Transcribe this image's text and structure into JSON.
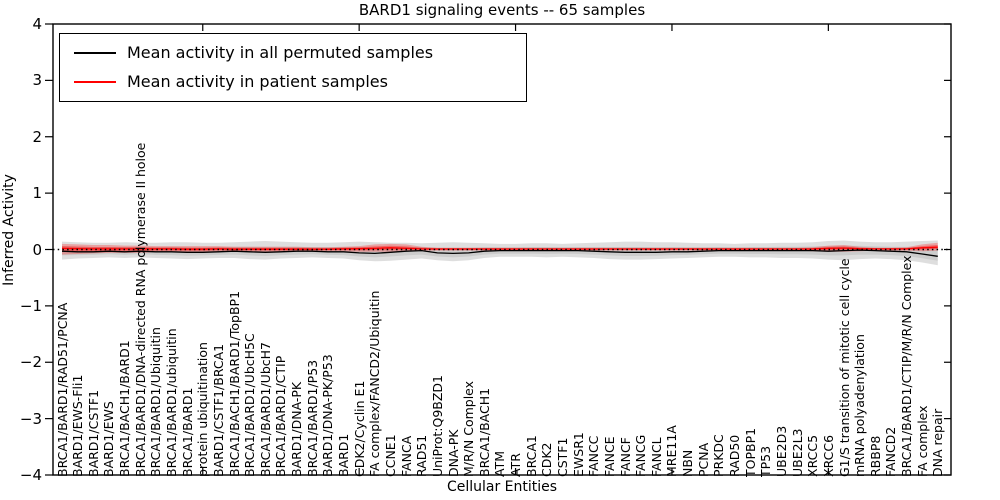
{
  "chart_data": {
    "type": "line",
    "title": "BARD1 signaling events -- 65 samples",
    "xlabel": "Cellular Entities",
    "ylabel": "Inferred Activity",
    "ylim": [
      -4,
      4
    ],
    "grid": false,
    "legend_position": "upper left",
    "baseline": 0,
    "colors": {
      "permuted": "#000000",
      "patient": "#ff0000",
      "axis": "#000000"
    },
    "yticks": [
      {
        "label": "4",
        "value": 4
      },
      {
        "label": "3",
        "value": 3
      },
      {
        "label": "2",
        "value": 2
      },
      {
        "label": "1",
        "value": 1
      },
      {
        "label": "0",
        "value": 0
      },
      {
        "label": "−1",
        "value": -1
      },
      {
        "label": "−2",
        "value": -2
      },
      {
        "label": "−3",
        "value": -3
      },
      {
        "label": "−4",
        "value": -4
      }
    ],
    "x_major_tick_indices": [
      9,
      19,
      29,
      39,
      49
    ],
    "categories": [
      "BRCA1/BARD1/RAD51/PCNA",
      "BARD1/EWS-Fli1",
      "BARD1/CSTF1",
      "BARD1/EWS",
      "BRCA1/BACH1/BARD1",
      "BRCA1/BARD1/DNA-directed RNA polymerase II holoe",
      "BRCA1/BARD1/Ubiquitin",
      "BRCA1/BARD1/ubiquitin",
      "BRCA1/BARD1",
      "protein ubiquitination",
      "BARD1/CSTF1/BRCA1",
      "BRCA1/BACH1/BARD1/TopBP1",
      "BRCA1/BARD1/UbcH5C",
      "BRCA1/BARD1/UbcH7",
      "BRCA1/BARD1/CTIP",
      "BARD1/DNA-PK",
      "BRCA1/BARD1/P53",
      "BARD1/DNA-PK/P53",
      "BARD1",
      "CDK2/Cyclin E1",
      "FA complex/FANCD2/Ubiquitin",
      "CCNE1",
      "FANCA",
      "RAD51",
      "UniProt:Q9BZD1",
      "DNA-PK",
      "M/R/N Complex",
      "BRCA1/BACH1",
      "ATM",
      "ATR",
      "BRCA1",
      "CDK2",
      "CSTF1",
      "EWSR1",
      "FANCC",
      "FANCE",
      "FANCF",
      "FANCG",
      "FANCL",
      "MRE11A",
      "NBN",
      "PCNA",
      "PRKDC",
      "RAD50",
      "TOPBP1",
      "TP53",
      "UBE2D3",
      "UBE2L3",
      "XRCC5",
      "XRCC6",
      "G1/S transition of mitotic cell cycle",
      "mRNA polyadenylation",
      "RBBP8",
      "FANCD2",
      "BRCA1/BARD1/CTIP/M/R/N Complex",
      "FA complex",
      "DNA repair"
    ],
    "series": [
      {
        "name": "Mean activity in all permuted samples",
        "color": "#000000",
        "band_opacity": 0.13,
        "inner_band_opacity": 0.08,
        "values": [
          -0.03,
          -0.04,
          -0.04,
          -0.03,
          -0.04,
          -0.03,
          -0.04,
          -0.04,
          -0.05,
          -0.05,
          -0.04,
          -0.03,
          -0.04,
          -0.05,
          -0.04,
          -0.03,
          -0.03,
          -0.04,
          -0.04,
          -0.06,
          -0.07,
          -0.05,
          -0.03,
          -0.02,
          -0.06,
          -0.07,
          -0.06,
          -0.03,
          -0.02,
          -0.02,
          -0.02,
          -0.02,
          -0.02,
          -0.02,
          -0.03,
          -0.04,
          -0.05,
          -0.05,
          -0.05,
          -0.04,
          -0.04,
          -0.03,
          -0.02,
          -0.02,
          -0.02,
          -0.02,
          -0.02,
          -0.02,
          -0.02,
          -0.03,
          -0.02,
          -0.01,
          -0.02,
          -0.03,
          -0.04,
          -0.08,
          -0.12
        ],
        "upper": [
          0.14,
          0.13,
          0.12,
          0.12,
          0.13,
          0.12,
          0.12,
          0.13,
          0.13,
          0.12,
          0.12,
          0.13,
          0.14,
          0.15,
          0.14,
          0.13,
          0.12,
          0.12,
          0.13,
          0.14,
          0.13,
          0.12,
          0.12,
          0.11,
          0.12,
          0.13,
          0.12,
          0.11,
          0.1,
          0.1,
          0.11,
          0.11,
          0.1,
          0.11,
          0.12,
          0.13,
          0.14,
          0.14,
          0.13,
          0.13,
          0.12,
          0.11,
          0.11,
          0.1,
          0.11,
          0.11,
          0.12,
          0.12,
          0.13,
          0.15,
          0.16,
          0.14,
          0.13,
          0.13,
          0.14,
          0.15,
          0.16
        ],
        "lower": [
          -0.18,
          -0.16,
          -0.15,
          -0.14,
          -0.15,
          -0.14,
          -0.15,
          -0.16,
          -0.17,
          -0.16,
          -0.15,
          -0.15,
          -0.17,
          -0.18,
          -0.16,
          -0.15,
          -0.14,
          -0.15,
          -0.16,
          -0.19,
          -0.21,
          -0.2,
          -0.18,
          -0.16,
          -0.19,
          -0.21,
          -0.19,
          -0.15,
          -0.13,
          -0.13,
          -0.13,
          -0.14,
          -0.13,
          -0.14,
          -0.15,
          -0.17,
          -0.18,
          -0.18,
          -0.17,
          -0.16,
          -0.15,
          -0.14,
          -0.13,
          -0.13,
          -0.14,
          -0.14,
          -0.15,
          -0.15,
          -0.16,
          -0.18,
          -0.19,
          -0.17,
          -0.16,
          -0.17,
          -0.19,
          -0.23,
          -0.28
        ]
      },
      {
        "name": "Mean activity in patient samples",
        "color": "#ff0000",
        "band_opacity": 0.27,
        "inner_band_opacity": 0.38,
        "values": [
          0.02,
          0.015,
          0.01,
          0.01,
          0.01,
          0.01,
          0.01,
          0.01,
          0.005,
          0.005,
          0.01,
          0.005,
          0.005,
          0.005,
          0.005,
          0.005,
          0.005,
          0.005,
          0.01,
          0.015,
          0.02,
          0.03,
          0.02,
          0.01,
          0.008,
          0.008,
          0.008,
          0.008,
          0.008,
          0.008,
          0.008,
          0.008,
          0.008,
          0.008,
          0.008,
          0.008,
          0.008,
          0.008,
          0.008,
          0.008,
          0.008,
          0.008,
          0.008,
          0.008,
          0.008,
          0.008,
          0.008,
          0.008,
          0.01,
          0.02,
          0.025,
          0.015,
          0.01,
          0.01,
          0.01,
          0.03,
          0.04
        ],
        "upper": [
          0.1,
          0.09,
          0.08,
          0.08,
          0.07,
          0.07,
          0.06,
          0.06,
          0.06,
          0.06,
          0.06,
          0.05,
          0.05,
          0.05,
          0.05,
          0.05,
          0.04,
          0.04,
          0.05,
          0.06,
          0.09,
          0.1,
          0.09,
          0.05,
          0.03,
          0.03,
          0.03,
          0.03,
          0.03,
          0.03,
          0.03,
          0.03,
          0.03,
          0.03,
          0.03,
          0.03,
          0.03,
          0.03,
          0.03,
          0.03,
          0.03,
          0.03,
          0.03,
          0.03,
          0.03,
          0.03,
          0.03,
          0.03,
          0.04,
          0.07,
          0.08,
          0.05,
          0.03,
          0.03,
          0.04,
          0.09,
          0.12
        ],
        "lower": [
          -0.09,
          -0.08,
          -0.07,
          -0.06,
          -0.06,
          -0.06,
          -0.05,
          -0.05,
          -0.05,
          -0.05,
          -0.04,
          -0.04,
          -0.04,
          -0.04,
          -0.04,
          -0.03,
          -0.03,
          -0.03,
          -0.03,
          -0.04,
          -0.04,
          -0.04,
          -0.03,
          -0.02,
          -0.02,
          -0.02,
          -0.02,
          -0.02,
          -0.02,
          -0.02,
          -0.02,
          -0.02,
          -0.02,
          -0.02,
          -0.02,
          -0.02,
          -0.02,
          -0.02,
          -0.02,
          -0.02,
          -0.02,
          -0.02,
          -0.02,
          -0.02,
          -0.02,
          -0.02,
          -0.02,
          -0.02,
          -0.03,
          -0.04,
          -0.04,
          -0.03,
          -0.02,
          -0.02,
          -0.02,
          -0.03,
          -0.02
        ]
      }
    ]
  }
}
